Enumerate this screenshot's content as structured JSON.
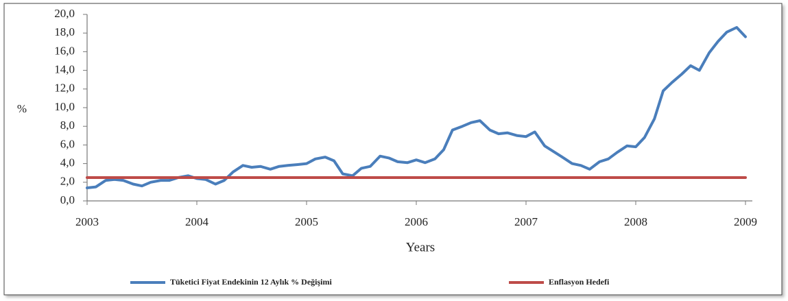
{
  "chart_data": {
    "type": "line",
    "y_label": "%",
    "x_label": "Years",
    "xlim": [
      2003,
      2009
    ],
    "xticks": [
      2003,
      2004,
      2005,
      2006,
      2007,
      2008,
      2009
    ],
    "ylim": [
      0,
      20
    ],
    "yticks": [
      {
        "value": 0,
        "label": "0,0"
      },
      {
        "value": 2,
        "label": "2,0"
      },
      {
        "value": 4,
        "label": "4,0"
      },
      {
        "value": 6,
        "label": "6,0"
      },
      {
        "value": 8,
        "label": "8,0"
      },
      {
        "value": 10,
        "label": "10,0"
      },
      {
        "value": 12,
        "label": "12,0"
      },
      {
        "value": 14,
        "label": "14,0"
      },
      {
        "value": 16,
        "label": "16,0"
      },
      {
        "value": 18,
        "label": "18,0"
      },
      {
        "value": 20,
        "label": "20,0"
      }
    ],
    "grid": false,
    "legend": "bottom",
    "series": [
      {
        "name": "Tüketici Fiyat Endekinin 12 Aylık % Değişimi",
        "color": "#4a7ebb",
        "x": [
          2003,
          2003.08,
          2003.17,
          2003.25,
          2003.33,
          2003.42,
          2003.5,
          2003.58,
          2003.67,
          2003.75,
          2003.83,
          2003.92,
          2004,
          2004.08,
          2004.17,
          2004.25,
          2004.33,
          2004.42,
          2004.5,
          2004.58,
          2004.67,
          2004.75,
          2004.83,
          2004.92,
          2005,
          2005.08,
          2005.17,
          2005.25,
          2005.33,
          2005.42,
          2005.5,
          2005.58,
          2005.67,
          2005.75,
          2005.83,
          2005.92,
          2006,
          2006.08,
          2006.17,
          2006.25,
          2006.33,
          2006.42,
          2006.5,
          2006.58,
          2006.67,
          2006.75,
          2006.83,
          2006.92,
          2007,
          2007.08,
          2007.17,
          2007.25,
          2007.33,
          2007.42,
          2007.5,
          2007.58,
          2007.67,
          2007.75,
          2007.83,
          2007.92,
          2008,
          2008.08,
          2008.17,
          2008.25,
          2008.33,
          2008.42,
          2008.5,
          2008.58,
          2008.67,
          2008.75,
          2008.83,
          2008.92,
          2009
        ],
        "values": [
          1.4,
          1.5,
          2.2,
          2.3,
          2.2,
          1.8,
          1.6,
          2.0,
          2.2,
          2.2,
          2.5,
          2.7,
          2.4,
          2.3,
          1.8,
          2.2,
          3.1,
          3.8,
          3.6,
          3.7,
          3.4,
          3.7,
          3.8,
          3.9,
          4.0,
          4.5,
          4.7,
          4.3,
          2.9,
          2.7,
          3.5,
          3.7,
          4.8,
          4.6,
          4.2,
          4.1,
          4.4,
          4.1,
          4.5,
          5.5,
          7.6,
          8.0,
          8.4,
          8.6,
          7.6,
          7.2,
          7.3,
          7.0,
          6.9,
          7.4,
          5.9,
          5.3,
          4.7,
          4.0,
          3.8,
          3.4,
          4.2,
          4.5,
          5.2,
          5.9,
          5.8,
          6.8,
          8.8,
          11.8,
          12.7,
          13.6,
          14.5,
          14.0,
          15.9,
          17.1,
          18.1,
          18.6,
          17.6
        ]
      },
      {
        "name": "Enflasyon Hedefi",
        "color": "#be4b48",
        "x": [
          2003,
          2009
        ],
        "values": [
          2.5,
          2.5
        ]
      }
    ]
  }
}
